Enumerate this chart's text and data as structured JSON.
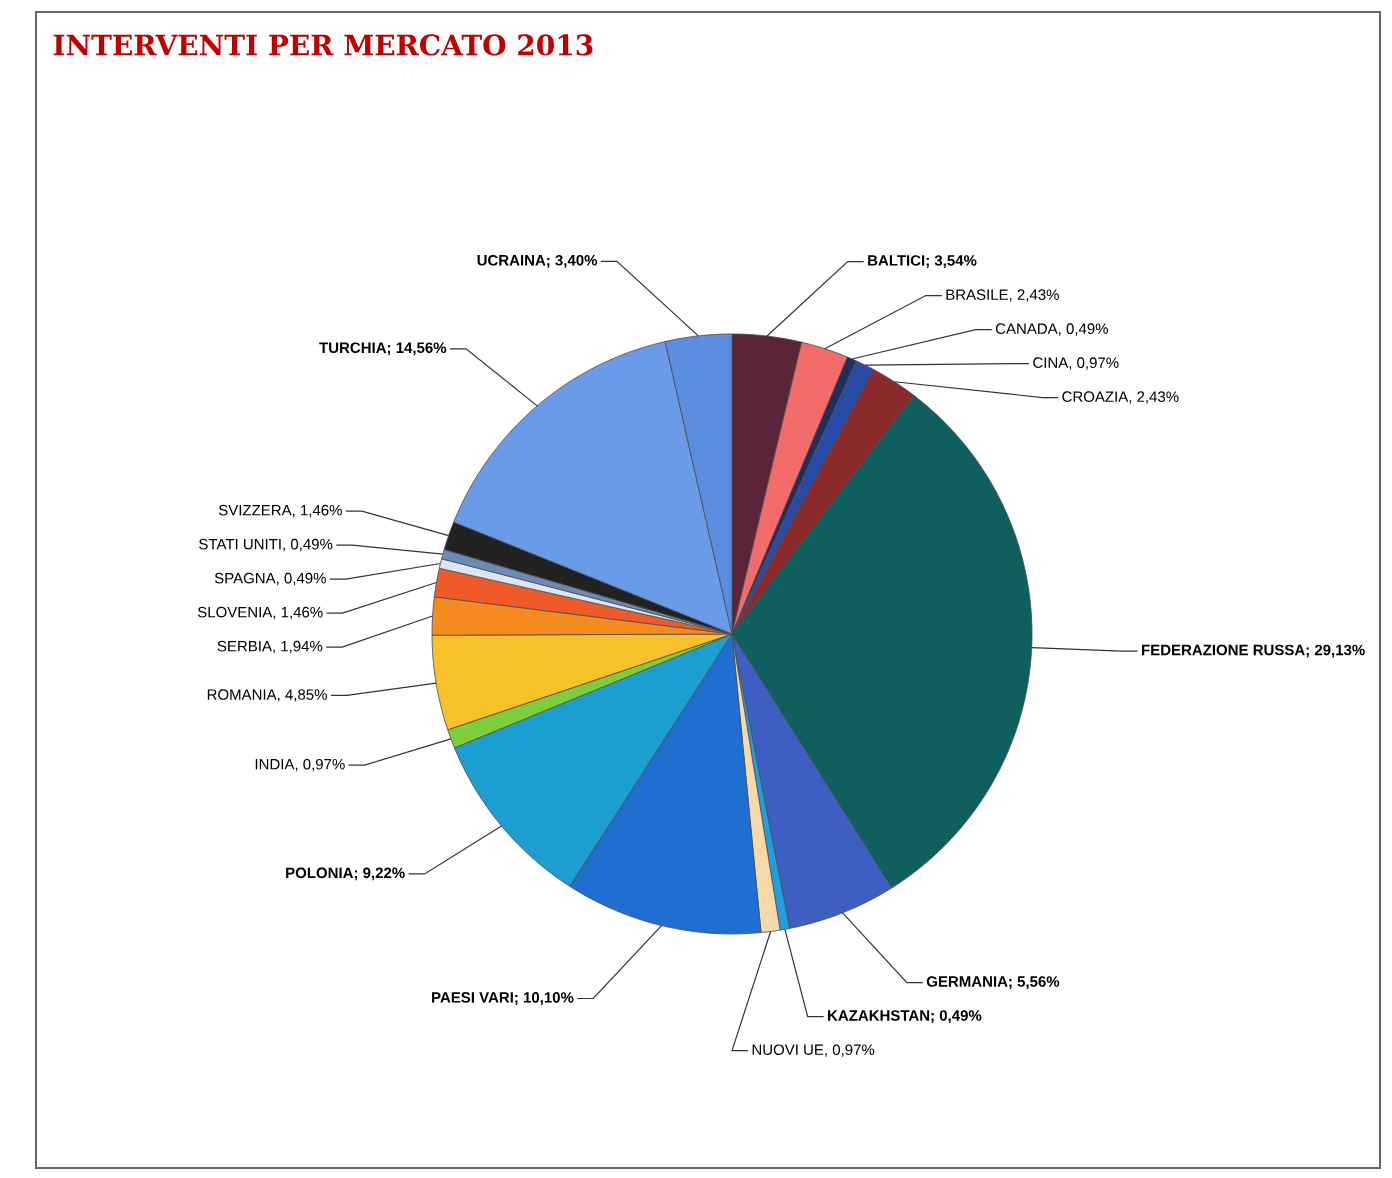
{
  "chart_data": {
    "type": "pie",
    "title": "INTERVENTI PER MERCATO 2013",
    "categories": [
      "BALTICI; 3,54%",
      "BRASILE, 2,43%",
      "CANADA, 0,49%",
      "CINA, 0,97%",
      "CROAZIA, 2,43%",
      "FEDERAZIONE RUSSA; 29,13%",
      "GERMANIA; 5,56%",
      "KAZAKHSTAN; 0,49%",
      "NUOVI UE, 0,97%",
      "PAESI VARI; 10,10%",
      "POLONIA; 9,22%",
      "INDIA, 0,97%",
      "ROMANIA, 4,85%",
      "SERBIA, 1,94%",
      "SLOVENIA, 1,46%",
      "SPAGNA, 0,49%",
      "STATI UNITI, 0,49%",
      "SVIZZERA, 1,46%",
      "TURCHIA; 14,56%",
      "UCRAINA; 3,40%"
    ],
    "values": [
      3.54,
      2.43,
      0.49,
      0.97,
      2.43,
      29.13,
      5.56,
      0.49,
      0.97,
      10.1,
      9.22,
      0.97,
      4.85,
      1.94,
      1.46,
      0.49,
      0.49,
      1.46,
      14.56,
      3.4
    ],
    "colors": [
      "#5c2438",
      "#f36b6b",
      "#1f2f5f",
      "#2a4aa8",
      "#8a2a2a",
      "#0f5f5f",
      "#3d5fc4",
      "#1ea0e0",
      "#f5d9a8",
      "#1f6fd0",
      "#1a9fd0",
      "#7ccf3a",
      "#f7c12a",
      "#f58a1f",
      "#f05a28",
      "#dde6f0",
      "#6a8ab8",
      "#222222",
      "#6a9be8",
      "#5b8de0"
    ]
  }
}
